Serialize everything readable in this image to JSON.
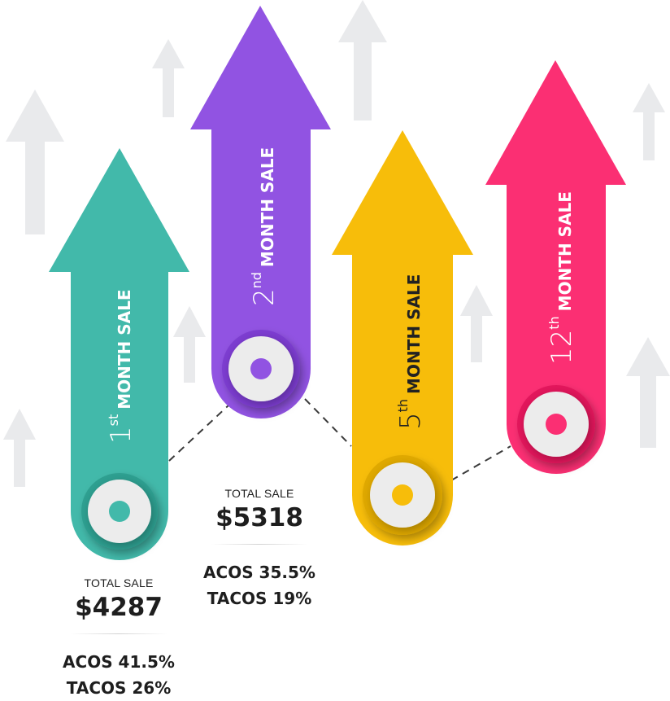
{
  "arrows": [
    {
      "id": "1",
      "num": "1",
      "sup": "st",
      "word": "MONTH SALE",
      "color": "#42b9aa",
      "num_color": "#ffffff",
      "word_color": "#ffffff"
    },
    {
      "id": "2",
      "num": "2",
      "sup": "nd",
      "word": "MONTH SALE",
      "color": "#9153e2",
      "num_color": "#ffffff",
      "word_color": "#ffffff"
    },
    {
      "id": "5",
      "num": "5",
      "sup": "th",
      "word": "MONTH SALE",
      "color": "#f7bd0a",
      "num_color": "#222222",
      "word_color": "#222222"
    },
    {
      "id": "12",
      "num": "12",
      "sup": "th",
      "word": "MONTH SALE",
      "color": "#fb2f73",
      "num_color": "#ffffff",
      "word_color": "#ffffff"
    }
  ],
  "stats": {
    "first": {
      "label": "TOTAL SALE",
      "amount": "$4287",
      "acos": "ACOS 41.5%",
      "tacos": "TACOS 26%"
    },
    "second": {
      "label": "TOTAL SALE",
      "amount": "$5318",
      "acos": "ACOS 35.5%",
      "tacos": "TACOS 19%"
    }
  },
  "background_arrow_color": "#e9eaec"
}
